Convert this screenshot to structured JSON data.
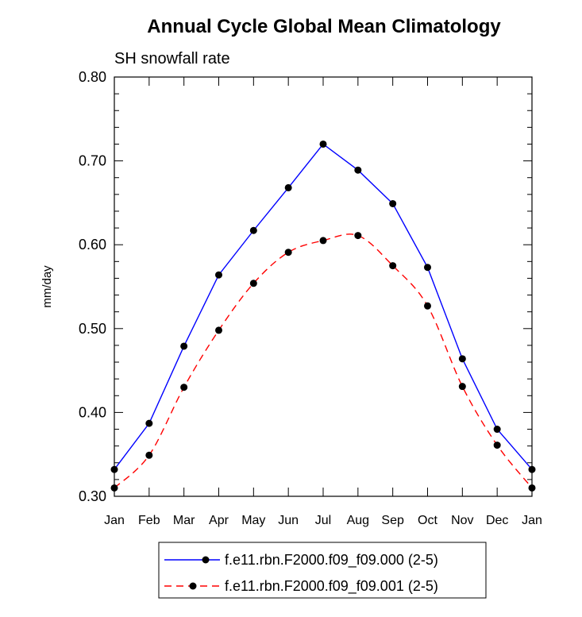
{
  "chart_data": {
    "type": "line",
    "title": "Annual Cycle Global Mean Climatology",
    "subtitle": "SH snowfall rate",
    "xlabel": "",
    "ylabel": "mm/day",
    "ylim": [
      0.3,
      0.8
    ],
    "yticks": [
      "0.30",
      "0.40",
      "0.50",
      "0.60",
      "0.70",
      "0.80"
    ],
    "categories": [
      "Jan",
      "Feb",
      "Mar",
      "Apr",
      "May",
      "Jun",
      "Jul",
      "Aug",
      "Sep",
      "Oct",
      "Nov",
      "Dec",
      "Jan"
    ],
    "legend_position": "bottom",
    "series": [
      {
        "name": "f.e11.rbn.F2000.f09_f09.000 (2-5)",
        "color": "#0000ff",
        "line_style": "solid",
        "marker": "filled-circle",
        "values": [
          0.332,
          0.387,
          0.479,
          0.564,
          0.617,
          0.668,
          0.72,
          0.689,
          0.649,
          0.573,
          0.464,
          0.38,
          0.332
        ]
      },
      {
        "name": "f.e11.rbn.F2000.f09_f09.001 (2-5)",
        "color": "#ff0000",
        "line_style": "dashed",
        "marker": "filled-circle",
        "values": [
          0.31,
          0.349,
          0.43,
          0.498,
          0.554,
          0.591,
          0.605,
          0.611,
          0.575,
          0.527,
          0.431,
          0.361,
          0.31
        ]
      }
    ]
  }
}
